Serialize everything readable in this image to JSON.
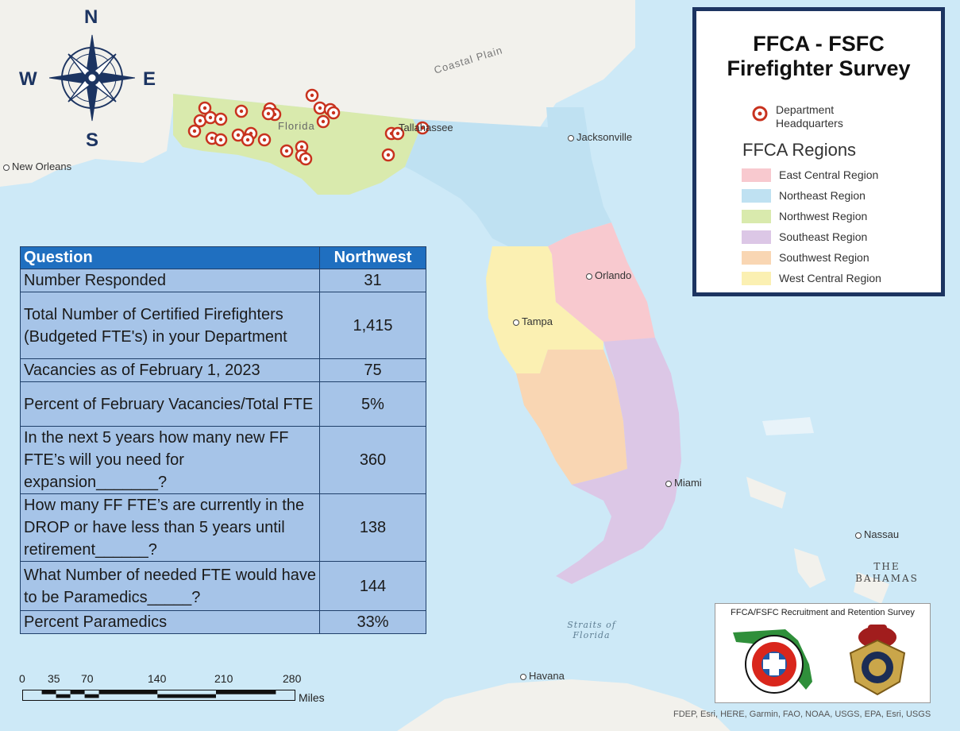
{
  "legend": {
    "title_line1": "FFCA - FSFC",
    "title_line2": "Firefighter Survey",
    "hq_label_line1": "Department",
    "hq_label_line2": "Headquarters",
    "regions_title": "FFCA Regions",
    "regions": [
      {
        "label": "East Central Region",
        "color": "#f8c9cf"
      },
      {
        "label": "Northeast Region",
        "color": "#bfe1f2"
      },
      {
        "label": "Northwest Region",
        "color": "#d9eaad"
      },
      {
        "label": "Southeast Region",
        "color": "#dcc7e6"
      },
      {
        "label": "Southwest Region",
        "color": "#f9d6b3"
      },
      {
        "label": "West Central Region",
        "color": "#fbf0b2"
      }
    ]
  },
  "table": {
    "header": {
      "question": "Question",
      "region": "Northwest"
    },
    "rows": [
      {
        "question": "Number Responded",
        "value": "31"
      },
      {
        "question": "Total Number of Certified Firefighters (Budgeted FTE's) in your Department",
        "value": "1,415"
      },
      {
        "question": "Vacancies as of February 1, 2023",
        "value": "75"
      },
      {
        "question": "Percent of February Vacancies/Total FTE",
        "value": "5%"
      },
      {
        "question": "In the next 5 years how many new FF FTE’s will you need for expansion_______?",
        "value": "360"
      },
      {
        "question": "How many FF FTE’s are currently in the DROP or have less than 5 years until retirement______?",
        "value": "138"
      },
      {
        "question": "What Number of needed FTE would have to be Paramedics_____?",
        "value": "144"
      },
      {
        "question": "Percent Paramedics",
        "value": "33%"
      }
    ]
  },
  "compass": {
    "n": "N",
    "s": "S",
    "e": "E",
    "w": "W"
  },
  "map_labels": {
    "coastal_plain": "Coastal Plain",
    "florida": "Florida",
    "tallahassee": "Tallahassee",
    "jacksonville": "Jacksonville",
    "new_orleans": "New Orleans",
    "orlando": "Orlando",
    "tampa": "Tampa",
    "miami": "Miami",
    "nassau": "Nassau",
    "bahamas_line1": "THE",
    "bahamas_line2": "BAHAMAS",
    "straits_line1": "Straits of",
    "straits_line2": "Florida",
    "havana": "Havana"
  },
  "scale": {
    "ticks": [
      "0",
      "35",
      "70",
      "140",
      "210",
      "280"
    ],
    "unit": "Miles"
  },
  "logo_box": {
    "title": "FFCA/FSFC Recruitment and Retention Survey",
    "logo1": "FLORIDA FIRE CHIEFS' ASSOCIATION",
    "logo2": "STATE FIRE MARSHAL FLORIDA"
  },
  "attribution": "FDEP, Esri, HERE, Garmin, FAO, NOAA, USGS, EPA, Esri, USGS",
  "colors": {
    "ocean": "#cde9f7",
    "land": "#f2f1ec",
    "marker": "#c8321e",
    "frame": "#1c3461",
    "table_header": "#1f6fc0",
    "table_cell": "#a6c4e8"
  }
}
